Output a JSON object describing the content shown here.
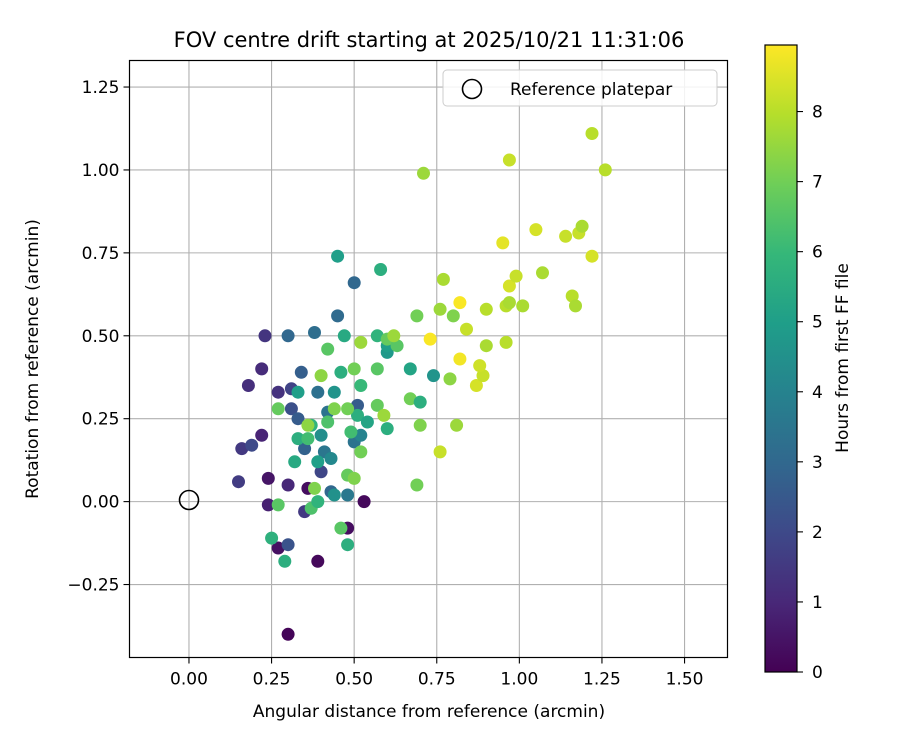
{
  "chart_data": {
    "type": "scatter",
    "title": "FOV centre drift starting at 2025/10/21 11:31:06",
    "xlabel": "Angular distance from reference (arcmin)",
    "ylabel": "Rotation from reference (arcmin)",
    "xlim": [
      -0.18,
      1.63
    ],
    "ylim": [
      -0.47,
      1.33
    ],
    "xticks": [
      0.0,
      0.25,
      0.5,
      0.75,
      1.0,
      1.25,
      1.5
    ],
    "xtick_labels": [
      "0.00",
      "0.25",
      "0.50",
      "0.75",
      "1.00",
      "1.25",
      "1.50"
    ],
    "yticks": [
      -0.25,
      0.0,
      0.25,
      0.5,
      0.75,
      1.0,
      1.25
    ],
    "ytick_labels": [
      "−0.25",
      "0.00",
      "0.25",
      "0.50",
      "0.75",
      "1.00",
      "1.25"
    ],
    "grid": true,
    "legend": {
      "placement": "top-right",
      "entries": [
        "Reference platepar"
      ]
    },
    "reference_point": {
      "x": 0.0,
      "y": 0.0,
      "label": "Reference platepar"
    },
    "colorbar": {
      "label": "Hours from first FF file",
      "min": 0,
      "max": 8.95,
      "ticks": [
        0,
        1,
        2,
        3,
        4,
        5,
        6,
        7,
        8
      ],
      "tick_labels": [
        "0",
        "1",
        "2",
        "3",
        "4",
        "5",
        "6",
        "7",
        "8"
      ],
      "colormap": "viridis",
      "stops": [
        "#440154",
        "#482878",
        "#3e4989",
        "#31688e",
        "#26828e",
        "#1f9e89",
        "#35b779",
        "#6ece58",
        "#b5de2b",
        "#fde725"
      ]
    },
    "points": [
      [
        0.3,
        -0.4,
        0.1
      ],
      [
        0.39,
        -0.18,
        0.2
      ],
      [
        0.48,
        -0.08,
        0.3
      ],
      [
        0.53,
        0.0,
        0.2
      ],
      [
        0.27,
        -0.14,
        0.4
      ],
      [
        0.36,
        0.04,
        0.3
      ],
      [
        0.24,
        0.07,
        0.5
      ],
      [
        0.24,
        -0.01,
        0.8
      ],
      [
        0.3,
        0.05,
        1.0
      ],
      [
        0.15,
        0.06,
        1.6
      ],
      [
        0.16,
        0.16,
        1.5
      ],
      [
        0.22,
        0.2,
        0.9
      ],
      [
        0.19,
        0.17,
        2.0
      ],
      [
        0.18,
        0.35,
        1.2
      ],
      [
        0.22,
        0.4,
        1.1
      ],
      [
        0.23,
        0.5,
        1.4
      ],
      [
        0.27,
        0.33,
        1.3
      ],
      [
        0.31,
        0.34,
        1.8
      ],
      [
        0.35,
        -0.03,
        1.5
      ],
      [
        0.3,
        -0.13,
        2.3
      ],
      [
        0.31,
        0.28,
        2.2
      ],
      [
        0.33,
        0.25,
        2.6
      ],
      [
        0.35,
        0.16,
        2.8
      ],
      [
        0.3,
        0.5,
        3.0
      ],
      [
        0.34,
        0.39,
        2.7
      ],
      [
        0.39,
        0.33,
        3.3
      ],
      [
        0.42,
        0.27,
        3.4
      ],
      [
        0.38,
        0.51,
        3.2
      ],
      [
        0.4,
        0.09,
        1.9
      ],
      [
        0.41,
        0.15,
        3.5
      ],
      [
        0.43,
        0.13,
        4.2
      ],
      [
        0.43,
        0.03,
        3.0
      ],
      [
        0.44,
        0.02,
        4.5
      ],
      [
        0.48,
        0.02,
        3.6
      ],
      [
        0.45,
        0.56,
        3.1
      ],
      [
        0.5,
        0.66,
        3.0
      ],
      [
        0.51,
        0.29,
        2.6
      ],
      [
        0.5,
        0.18,
        3.4
      ],
      [
        0.52,
        0.2,
        4.0
      ],
      [
        0.45,
        0.74,
        5.0
      ],
      [
        0.47,
        0.5,
        5.4
      ],
      [
        0.46,
        0.39,
        5.6
      ],
      [
        0.44,
        0.33,
        4.6
      ],
      [
        0.4,
        0.2,
        4.4
      ],
      [
        0.39,
        0.12,
        5.0
      ],
      [
        0.37,
        0.23,
        5.8
      ],
      [
        0.33,
        0.19,
        5.6
      ],
      [
        0.32,
        0.12,
        5.4
      ],
      [
        0.33,
        0.33,
        5.0
      ],
      [
        0.36,
        0.19,
        6.2
      ],
      [
        0.37,
        -0.02,
        6.4
      ],
      [
        0.39,
        0.0,
        5.8
      ],
      [
        0.29,
        -0.18,
        5.6
      ],
      [
        0.25,
        -0.11,
        5.7
      ],
      [
        0.27,
        -0.01,
        6.6
      ],
      [
        0.27,
        0.28,
        6.8
      ],
      [
        0.38,
        0.04,
        7.2
      ],
      [
        0.48,
        -0.13,
        5.6
      ],
      [
        0.46,
        -0.08,
        6.6
      ],
      [
        0.48,
        0.08,
        6.8
      ],
      [
        0.5,
        0.07,
        7.2
      ],
      [
        0.52,
        0.15,
        7.0
      ],
      [
        0.52,
        0.35,
        6.0
      ],
      [
        0.5,
        0.4,
        7.0
      ],
      [
        0.51,
        0.26,
        5.6
      ],
      [
        0.48,
        0.28,
        7.0
      ],
      [
        0.44,
        0.28,
        7.2
      ],
      [
        0.42,
        0.24,
        6.4
      ],
      [
        0.42,
        0.46,
        6.6
      ],
      [
        0.4,
        0.38,
        7.4
      ],
      [
        0.36,
        0.23,
        7.4
      ],
      [
        0.49,
        0.21,
        6.2
      ],
      [
        0.54,
        0.24,
        5.2
      ],
      [
        0.57,
        0.29,
        6.8
      ],
      [
        0.57,
        0.4,
        6.6
      ],
      [
        0.57,
        0.5,
        5.8
      ],
      [
        0.6,
        0.45,
        4.8
      ],
      [
        0.6,
        0.47,
        5.0
      ],
      [
        0.58,
        0.7,
        5.6
      ],
      [
        0.6,
        0.22,
        5.6
      ],
      [
        0.52,
        0.48,
        7.6
      ],
      [
        0.6,
        0.49,
        6.8
      ],
      [
        0.63,
        0.47,
        6.6
      ],
      [
        0.62,
        0.5,
        7.6
      ],
      [
        0.59,
        0.26,
        7.6
      ],
      [
        0.67,
        0.31,
        7.0
      ],
      [
        0.67,
        0.4,
        5.2
      ],
      [
        0.69,
        0.56,
        7.0
      ],
      [
        0.7,
        0.3,
        5.6
      ],
      [
        0.7,
        0.23,
        7.2
      ],
      [
        0.69,
        0.05,
        7.0
      ],
      [
        0.74,
        0.38,
        4.6
      ],
      [
        0.76,
        0.58,
        7.6
      ],
      [
        0.77,
        0.67,
        7.8
      ],
      [
        0.79,
        0.37,
        7.4
      ],
      [
        0.81,
        0.23,
        7.6
      ],
      [
        0.8,
        0.56,
        7.2
      ],
      [
        0.76,
        0.15,
        8.2
      ],
      [
        0.73,
        0.49,
        8.9
      ],
      [
        0.82,
        0.6,
        8.9
      ],
      [
        0.82,
        0.43,
        8.8
      ],
      [
        0.84,
        0.52,
        8.2
      ],
      [
        0.87,
        0.35,
        8.4
      ],
      [
        0.89,
        0.38,
        8.2
      ],
      [
        0.88,
        0.41,
        8.3
      ],
      [
        0.9,
        0.47,
        7.8
      ],
      [
        0.9,
        0.58,
        8.0
      ],
      [
        0.96,
        0.48,
        8.0
      ],
      [
        0.96,
        0.59,
        8.0
      ],
      [
        0.97,
        0.6,
        7.8
      ],
      [
        0.97,
        0.65,
        8.4
      ],
      [
        0.95,
        0.78,
        8.6
      ],
      [
        0.99,
        0.68,
        8.2
      ],
      [
        1.01,
        0.59,
        7.8
      ],
      [
        1.07,
        0.69,
        7.8
      ],
      [
        1.05,
        0.82,
        8.4
      ],
      [
        1.14,
        0.8,
        8.2
      ],
      [
        1.16,
        0.62,
        8.0
      ],
      [
        1.17,
        0.59,
        7.8
      ],
      [
        1.18,
        0.81,
        8.2
      ],
      [
        1.19,
        0.83,
        7.8
      ],
      [
        1.22,
        0.74,
        8.4
      ],
      [
        0.97,
        1.03,
        8.2
      ],
      [
        0.71,
        0.99,
        7.6
      ],
      [
        1.22,
        1.11,
        8.0
      ],
      [
        1.26,
        1.0,
        8.0
      ]
    ]
  }
}
